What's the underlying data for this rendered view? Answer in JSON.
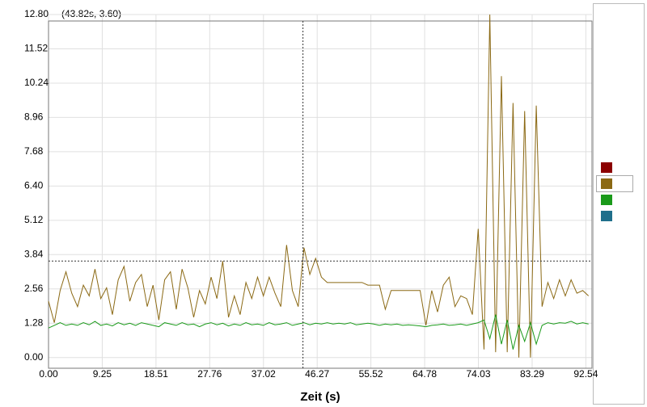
{
  "chart_data": {
    "type": "line",
    "annotation": "(43.82s, 3.60)",
    "cursor": {
      "x": 43.82,
      "y": 3.6
    },
    "xlabel": "Zeit (s)",
    "xlim": [
      0,
      93.6
    ],
    "ylim": [
      -0.4,
      12.8
    ],
    "xticks": [
      {
        "value": 0,
        "label": "0.00"
      },
      {
        "value": 9.25,
        "label": "9.25"
      },
      {
        "value": 18.51,
        "label": "18.51"
      },
      {
        "value": 27.76,
        "label": "27.76"
      },
      {
        "value": 37.02,
        "label": "37.02"
      },
      {
        "value": 46.27,
        "label": "46.27"
      },
      {
        "value": 55.52,
        "label": "55.52"
      },
      {
        "value": 64.78,
        "label": "64.78"
      },
      {
        "value": 74.03,
        "label": "74.03"
      },
      {
        "value": 83.29,
        "label": "83.29"
      },
      {
        "value": 92.54,
        "label": "92.54"
      }
    ],
    "yticks": [
      {
        "value": 0,
        "label": "0.00"
      },
      {
        "value": 1.28,
        "label": "1.28"
      },
      {
        "value": 2.56,
        "label": "2.56"
      },
      {
        "value": 3.84,
        "label": "3.84"
      },
      {
        "value": 5.12,
        "label": "5.12"
      },
      {
        "value": 6.4,
        "label": "6.40"
      },
      {
        "value": 7.68,
        "label": "7.68"
      },
      {
        "value": 8.96,
        "label": "8.96"
      },
      {
        "value": 10.24,
        "label": "10.24"
      },
      {
        "value": 11.52,
        "label": "11.52"
      },
      {
        "value": 12.8,
        "label": "12.80"
      }
    ],
    "grid": true,
    "x": [
      0,
      1,
      2,
      3,
      4,
      5,
      6,
      7,
      8,
      9,
      10,
      11,
      12,
      13,
      14,
      15,
      16,
      17,
      18,
      19,
      20,
      21,
      22,
      23,
      24,
      25,
      26,
      27,
      28,
      29,
      30,
      31,
      32,
      33,
      34,
      35,
      36,
      37,
      38,
      39,
      40,
      41,
      42,
      43,
      44,
      45,
      46,
      47,
      48,
      49,
      50,
      51,
      52,
      53,
      54,
      55,
      56,
      57,
      58,
      59,
      60,
      61,
      62,
      63,
      64,
      65,
      66,
      67,
      68,
      69,
      70,
      71,
      72,
      73,
      74,
      75,
      76,
      77,
      78,
      79,
      80,
      81,
      82,
      83,
      84,
      85,
      86,
      87,
      88,
      89,
      90,
      91,
      92,
      93
    ],
    "series": [
      {
        "color": "#8b0000"
      },
      {
        "color": "#8b6914",
        "values": [
          2.1,
          1.3,
          2.5,
          3.2,
          2.4,
          1.9,
          2.7,
          2.3,
          3.3,
          2.2,
          2.6,
          1.6,
          2.9,
          3.4,
          2.1,
          2.8,
          3.1,
          1.9,
          2.7,
          1.4,
          2.9,
          3.2,
          1.8,
          3.3,
          2.6,
          1.5,
          2.5,
          2.0,
          3.0,
          2.2,
          3.6,
          1.5,
          2.3,
          1.6,
          2.8,
          2.2,
          3.0,
          2.3,
          3.0,
          2.4,
          1.9,
          4.2,
          2.5,
          1.9,
          4.1,
          3.1,
          3.7,
          3.0,
          2.8,
          2.8,
          2.8,
          2.8,
          2.8,
          2.8,
          2.8,
          2.7,
          2.7,
          2.7,
          1.8,
          2.5,
          2.5,
          2.5,
          2.5,
          2.5,
          2.5,
          1.2,
          2.5,
          1.7,
          2.7,
          3.0,
          1.9,
          2.3,
          2.2,
          1.6,
          4.8,
          0.3,
          12.8,
          0.2,
          10.5,
          0.2,
          9.5,
          0.0,
          9.2,
          0.0,
          9.4,
          1.9,
          2.8,
          2.2,
          2.9,
          2.3,
          2.9,
          2.4,
          2.5,
          2.3
        ]
      },
      {
        "color": "#1a9a1a",
        "values": [
          1.1,
          1.2,
          1.3,
          1.2,
          1.25,
          1.2,
          1.3,
          1.22,
          1.35,
          1.2,
          1.25,
          1.18,
          1.3,
          1.22,
          1.28,
          1.2,
          1.3,
          1.25,
          1.2,
          1.15,
          1.3,
          1.25,
          1.2,
          1.3,
          1.22,
          1.25,
          1.15,
          1.25,
          1.3,
          1.22,
          1.28,
          1.18,
          1.25,
          1.2,
          1.3,
          1.22,
          1.25,
          1.2,
          1.3,
          1.22,
          1.25,
          1.3,
          1.2,
          1.25,
          1.3,
          1.22,
          1.28,
          1.25,
          1.3,
          1.25,
          1.28,
          1.25,
          1.3,
          1.22,
          1.25,
          1.28,
          1.25,
          1.2,
          1.25,
          1.22,
          1.25,
          1.2,
          1.22,
          1.2,
          1.18,
          1.15,
          1.2,
          1.22,
          1.25,
          1.2,
          1.22,
          1.25,
          1.2,
          1.25,
          1.3,
          1.4,
          0.7,
          1.6,
          0.5,
          1.4,
          0.3,
          1.2,
          0.6,
          1.3,
          0.5,
          1.2,
          1.3,
          1.25,
          1.3,
          1.28,
          1.35,
          1.25,
          1.3,
          1.25
        ]
      },
      {
        "color": "#1f6f8b"
      }
    ]
  }
}
